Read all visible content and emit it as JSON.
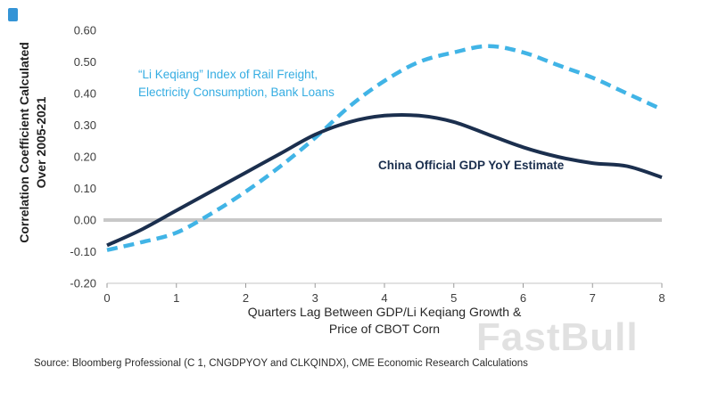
{
  "chart_data": {
    "type": "line",
    "title": "",
    "xlabel": "Quarters Lag Between GDP/Li Keqiang Growth & Price of CBOT Corn",
    "xlabel_lines": [
      "Quarters Lag Between GDP/Li Keqiang Growth &",
      "Price of CBOT Corn"
    ],
    "ylabel": "Correlation Coefficient Calculated Over 2005-2021",
    "ylabel_lines": [
      "Correlation Coefficient Calculated",
      "Over 2005-2021"
    ],
    "xlim": [
      0,
      8
    ],
    "ylim": [
      -0.2,
      0.6
    ],
    "x_ticks": [
      0,
      1,
      2,
      3,
      4,
      5,
      6,
      7,
      8
    ],
    "y_ticks": [
      -0.2,
      -0.1,
      0.0,
      0.1,
      0.2,
      0.3,
      0.4,
      0.5,
      0.6
    ],
    "grid": "zero-line-only",
    "legend_position": "inline-annotations",
    "x": [
      0,
      0.5,
      1,
      1.5,
      2,
      2.5,
      3,
      3.5,
      4,
      4.5,
      5,
      5.5,
      6,
      6.5,
      7,
      7.5,
      8
    ],
    "series": [
      {
        "name": "“Li Keqiang” Index of Rail Freight, Electricity Consumption, Bank Loans",
        "style": "dashed",
        "color": "#41b4e6",
        "values": [
          -0.095,
          -0.07,
          -0.04,
          0.02,
          0.09,
          0.17,
          0.26,
          0.36,
          0.44,
          0.5,
          0.53,
          0.55,
          0.53,
          0.49,
          0.45,
          0.4,
          0.35
        ]
      },
      {
        "name": "China Official GDP YoY Estimate",
        "style": "solid",
        "color": "#1b2f4e",
        "values": [
          -0.08,
          -0.03,
          0.03,
          0.09,
          0.15,
          0.21,
          0.27,
          0.31,
          0.33,
          0.33,
          0.31,
          0.27,
          0.23,
          0.2,
          0.18,
          0.17,
          0.135
        ]
      }
    ],
    "zero_line_color": "#c8c8c8"
  },
  "source": "Source: Bloomberg Professional (C 1, CNGDPYOY and CLKQINDX), CME Economic Research Calculations",
  "watermark": "FastBull"
}
